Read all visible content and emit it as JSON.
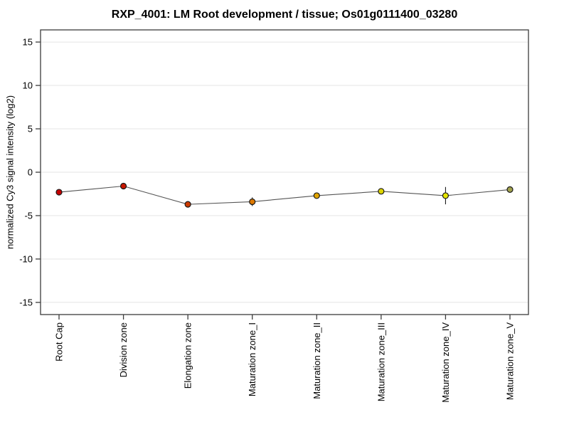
{
  "figure": {
    "title": "RXP_4001: LM Root development / tissue; Os01g0111400_03280"
  },
  "chart_data": {
    "type": "line",
    "title": "RXP_4001: LM Root development / tissue; Os01g0111400_03280",
    "xlabel": "",
    "ylabel": "normalized Cy3 signal intensity (log2)",
    "categories": [
      "Root Cap",
      "Division zone",
      "Elongation zone",
      "Maturation zone_I",
      "Maturation zone_II",
      "Maturation zone_III",
      "Maturation zone_IV",
      "Maturation zone_V"
    ],
    "values": [
      -2.3,
      -1.6,
      -3.7,
      -3.4,
      -2.7,
      -2.2,
      -2.7,
      -2.0
    ],
    "errors": [
      0,
      0,
      0,
      0.5,
      0.3,
      0,
      1.0,
      0
    ],
    "point_colors": [
      "#c40000",
      "#c81600",
      "#cc3a00",
      "#dd7800",
      "#e0a400",
      "#ddd400",
      "#e4e400",
      "#a2a24e"
    ],
    "ylim": [
      -16.4,
      16.4
    ],
    "yticks": [
      15,
      10,
      5,
      0,
      -5,
      -10,
      -15
    ],
    "grid": "horizontal",
    "legend": "none",
    "line_color": "#555555",
    "point_border_color": "#1a1a1a",
    "gridline_color": "#e4e4e4",
    "frame_color": "#3c3c3c",
    "tick_label_color": "#000000"
  }
}
